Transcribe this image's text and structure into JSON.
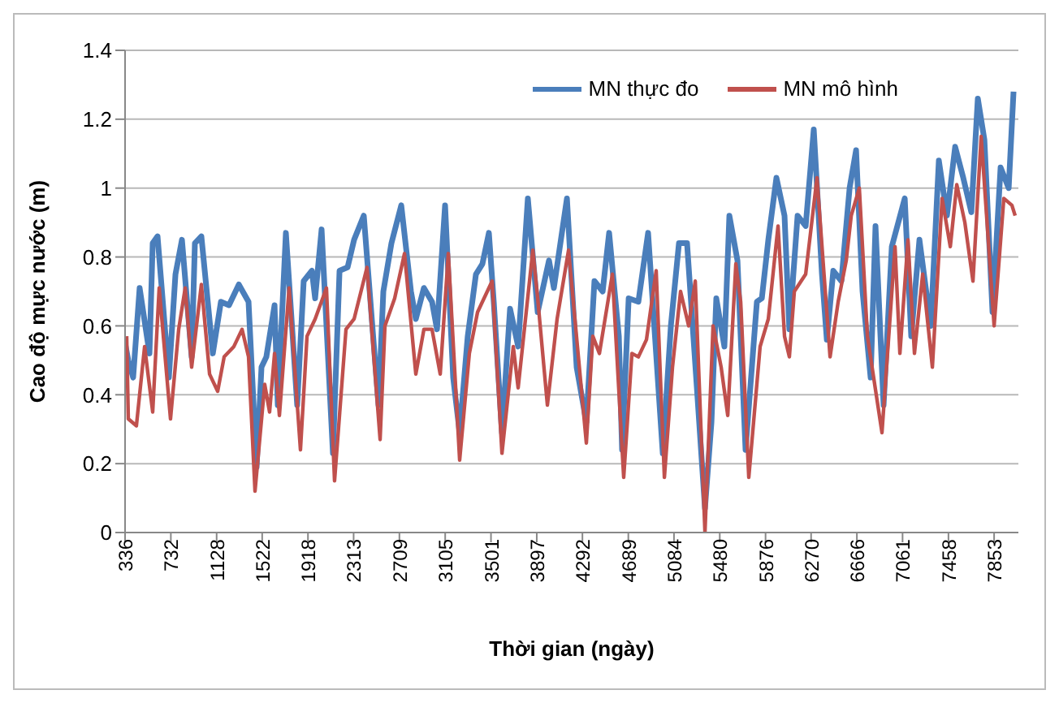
{
  "chart_data": {
    "type": "line",
    "xlabel": "Thời gian (ngày)",
    "ylabel": "Cao độ mực nước (m)",
    "xlim": [
      336,
      8063
    ],
    "xticks": [
      336,
      732,
      1128,
      1522,
      1918,
      2313,
      2709,
      3105,
      3501,
      3897,
      4292,
      4689,
      5084,
      5480,
      5876,
      6270,
      6666,
      7061,
      7458,
      7853
    ],
    "ylim": [
      0,
      1.4
    ],
    "yticks": [
      0,
      0.2,
      0.4,
      0.6,
      0.8,
      1,
      1.2,
      1.4
    ],
    "grid": "y",
    "legend": "top right",
    "marker": "none",
    "line_style": "solid",
    "series": [
      {
        "name": "MN thực đo",
        "color": "#4a7ebb",
        "x": [
          336,
          364,
          406,
          462,
          547,
          575,
          617,
          715,
          772,
          828,
          912,
          940,
          996,
          1095,
          1165,
          1235,
          1320,
          1404,
          1474,
          1516,
          1558,
          1629,
          1657,
          1727,
          1825,
          1881,
          1952,
          1980,
          2036,
          2134,
          2191,
          2261,
          2317,
          2401,
          2528,
          2570,
          2640,
          2725,
          2809,
          2851,
          2921,
          2991,
          3034,
          3104,
          3174,
          3230,
          3300,
          3371,
          3427,
          3483,
          3525,
          3596,
          3666,
          3736,
          3820,
          3905,
          4003,
          4045,
          4158,
          4242,
          4326,
          4396,
          4467,
          4523,
          4607,
          4635,
          4692,
          4776,
          4860,
          4987,
          5057,
          5127,
          5197,
          5282,
          5352,
          5408,
          5450,
          5520,
          5563,
          5633,
          5703,
          5801,
          5844,
          5900,
          5970,
          6040,
          6082,
          6153,
          6223,
          6293,
          6364,
          6406,
          6462,
          6532,
          6603,
          6659,
          6715,
          6785,
          6827,
          6897,
          6968,
          7080,
          7136,
          7207,
          7305,
          7375,
          7445,
          7516,
          7586,
          7656,
          7712,
          7769,
          7839,
          7909,
          7979,
          8021
        ],
        "values": [
          0.55,
          0.5,
          0.45,
          0.71,
          0.52,
          0.84,
          0.86,
          0.45,
          0.75,
          0.85,
          0.51,
          0.84,
          0.86,
          0.52,
          0.67,
          0.66,
          0.72,
          0.67,
          0.19,
          0.48,
          0.51,
          0.66,
          0.37,
          0.87,
          0.37,
          0.73,
          0.76,
          0.68,
          0.88,
          0.23,
          0.76,
          0.77,
          0.85,
          0.92,
          0.37,
          0.7,
          0.84,
          0.95,
          0.7,
          0.62,
          0.71,
          0.67,
          0.59,
          0.95,
          0.45,
          0.29,
          0.57,
          0.75,
          0.78,
          0.87,
          0.67,
          0.29,
          0.65,
          0.54,
          0.97,
          0.64,
          0.79,
          0.71,
          0.97,
          0.48,
          0.32,
          0.73,
          0.7,
          0.87,
          0.57,
          0.24,
          0.68,
          0.67,
          0.87,
          0.23,
          0.6,
          0.84,
          0.84,
          0.42,
          0.07,
          0.32,
          0.68,
          0.54,
          0.92,
          0.79,
          0.24,
          0.67,
          0.68,
          0.85,
          1.03,
          0.92,
          0.59,
          0.92,
          0.89,
          1.17,
          0.75,
          0.56,
          0.76,
          0.73,
          1.0,
          1.11,
          0.7,
          0.45,
          0.89,
          0.37,
          0.83,
          0.97,
          0.57,
          0.85,
          0.6,
          1.08,
          0.92,
          1.12,
          1.03,
          0.93,
          1.26,
          1.14,
          0.64,
          1.06,
          1.0,
          1.28
        ]
      },
      {
        "name": "MN mô hình",
        "color": "#c0504d",
        "x": [
          350,
          364,
          434,
          505,
          575,
          631,
          729,
          800,
          856,
          912,
          996,
          1067,
          1137,
          1193,
          1277,
          1348,
          1404,
          1460,
          1544,
          1586,
          1629,
          1671,
          1755,
          1853,
          1910,
          1980,
          2078,
          2148,
          2247,
          2317,
          2429,
          2542,
          2584,
          2668,
          2753,
          2851,
          2921,
          2991,
          3062,
          3132,
          3230,
          3314,
          3385,
          3511,
          3596,
          3694,
          3736,
          3863,
          3905,
          3989,
          4073,
          4172,
          4326,
          4382,
          4439,
          4551,
          4649,
          4720,
          4776,
          4846,
          4930,
          5001,
          5071,
          5141,
          5211,
          5268,
          5352,
          5422,
          5492,
          5549,
          5619,
          5661,
          5731,
          5829,
          5900,
          5984,
          6040,
          6082,
          6125,
          6223,
          6321,
          6434,
          6504,
          6574,
          6617,
          6687,
          6757,
          6883,
          6996,
          7038,
          7108,
          7164,
          7235,
          7319,
          7403,
          7474,
          7530,
          7600,
          7670,
          7741,
          7853,
          7937,
          8007,
          8035
        ],
        "values": [
          0.57,
          0.33,
          0.31,
          0.54,
          0.35,
          0.71,
          0.33,
          0.59,
          0.71,
          0.48,
          0.72,
          0.46,
          0.41,
          0.51,
          0.54,
          0.59,
          0.51,
          0.12,
          0.43,
          0.35,
          0.52,
          0.34,
          0.71,
          0.24,
          0.57,
          0.62,
          0.71,
          0.15,
          0.59,
          0.62,
          0.77,
          0.27,
          0.6,
          0.68,
          0.81,
          0.46,
          0.59,
          0.59,
          0.46,
          0.81,
          0.21,
          0.52,
          0.64,
          0.73,
          0.23,
          0.54,
          0.42,
          0.82,
          0.68,
          0.37,
          0.62,
          0.82,
          0.26,
          0.57,
          0.52,
          0.75,
          0.16,
          0.52,
          0.51,
          0.56,
          0.76,
          0.16,
          0.48,
          0.7,
          0.6,
          0.73,
          0.0,
          0.6,
          0.48,
          0.34,
          0.78,
          0.67,
          0.16,
          0.54,
          0.62,
          0.89,
          0.57,
          0.51,
          0.7,
          0.75,
          1.03,
          0.51,
          0.67,
          0.79,
          0.92,
          1.0,
          0.57,
          0.29,
          0.83,
          0.52,
          0.85,
          0.52,
          0.75,
          0.48,
          0.97,
          0.83,
          1.01,
          0.9,
          0.73,
          1.15,
          0.6,
          0.97,
          0.95,
          0.92
        ]
      }
    ]
  }
}
